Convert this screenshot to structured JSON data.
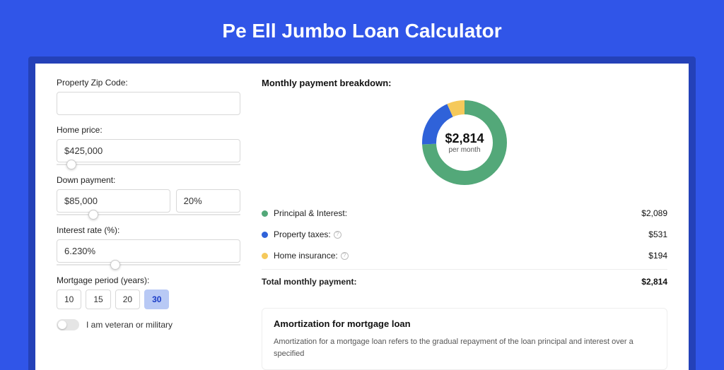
{
  "page_title": "Pe Ell Jumbo Loan Calculator",
  "background_color": "#3055e8",
  "card_shadow_color": "#2441b8",
  "form": {
    "zip": {
      "label": "Property Zip Code:",
      "value": ""
    },
    "home_price": {
      "label": "Home price:",
      "value": "$425,000",
      "slider_pct": 8
    },
    "down_payment": {
      "label": "Down payment:",
      "amount": "$85,000",
      "pct": "20%",
      "slider_pct": 20
    },
    "interest_rate": {
      "label": "Interest rate (%):",
      "value": "6.230%",
      "slider_pct": 32
    },
    "mortgage_period": {
      "label": "Mortgage period (years):",
      "options": [
        "10",
        "15",
        "20",
        "30"
      ],
      "selected": "30"
    },
    "veteran": {
      "label": "I am veteran or military",
      "checked": false
    }
  },
  "breakdown": {
    "title": "Monthly payment breakdown:",
    "center_amount": "$2,814",
    "center_sub": "per month",
    "donut": {
      "radius": 50,
      "stroke_width": 20,
      "segments": [
        {
          "color": "#53a879",
          "fraction": 0.742
        },
        {
          "color": "#2f62d9",
          "fraction": 0.189
        },
        {
          "color": "#f5c95b",
          "fraction": 0.069
        }
      ]
    },
    "legend": [
      {
        "dot_color": "#53a879",
        "label": "Principal & Interest:",
        "value": "$2,089",
        "info": false
      },
      {
        "dot_color": "#2f62d9",
        "label": "Property taxes:",
        "value": "$531",
        "info": true
      },
      {
        "dot_color": "#f5c95b",
        "label": "Home insurance:",
        "value": "$194",
        "info": true
      }
    ],
    "total": {
      "label": "Total monthly payment:",
      "value": "$2,814"
    }
  },
  "amortization": {
    "title": "Amortization for mortgage loan",
    "body": "Amortization for a mortgage loan refers to the gradual repayment of the loan principal and interest over a specified"
  }
}
